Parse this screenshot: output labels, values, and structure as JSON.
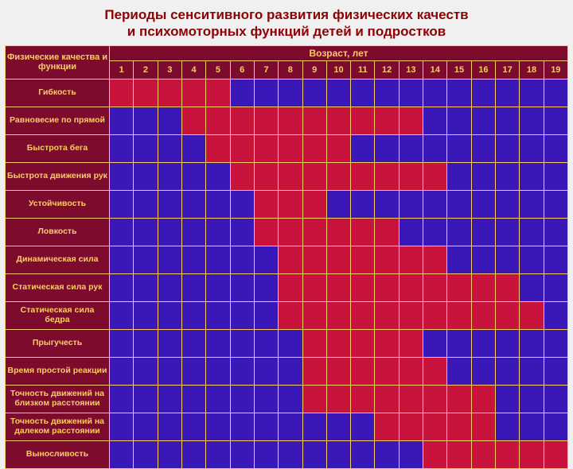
{
  "title_line1": "Периоды сенситивного развития физических качеств",
  "title_line2": "и психомоторных функций детей и подростков",
  "corner_label": "Физические качества и функции",
  "age_label": "Возраст, лет",
  "ages": [
    "1",
    "2",
    "3",
    "4",
    "5",
    "6",
    "7",
    "8",
    "9",
    "10",
    "11",
    "12",
    "13",
    "14",
    "15",
    "16",
    "17",
    "18",
    "19"
  ],
  "colors": {
    "header_bg": "#7d0b2d",
    "header_fg": "#ffcc66",
    "blue": "#3a18b8",
    "red": "#c8143c",
    "border": "#ffcc66"
  },
  "rows": [
    {
      "label": "Гибкость",
      "cells": [
        1,
        1,
        1,
        1,
        1,
        0,
        0,
        0,
        0,
        0,
        0,
        0,
        0,
        0,
        0,
        0,
        0,
        0,
        0
      ]
    },
    {
      "label": "Равновесие по прямой",
      "cells": [
        0,
        0,
        0,
        1,
        1,
        1,
        1,
        1,
        1,
        1,
        1,
        1,
        1,
        0,
        0,
        0,
        0,
        0,
        0
      ]
    },
    {
      "label": "Быстрота бега",
      "cells": [
        0,
        0,
        0,
        0,
        1,
        1,
        1,
        1,
        1,
        1,
        0,
        0,
        0,
        0,
        0,
        0,
        0,
        0,
        0
      ]
    },
    {
      "label": "Быстрота движения рук",
      "cells": [
        0,
        0,
        0,
        0,
        0,
        1,
        1,
        1,
        1,
        1,
        1,
        1,
        1,
        1,
        0,
        0,
        0,
        0,
        0
      ]
    },
    {
      "label": "Устойчивость",
      "cells": [
        0,
        0,
        0,
        0,
        0,
        0,
        1,
        1,
        1,
        0,
        0,
        0,
        0,
        0,
        0,
        0,
        0,
        0,
        0
      ]
    },
    {
      "label": "Ловкость",
      "cells": [
        0,
        0,
        0,
        0,
        0,
        0,
        1,
        1,
        1,
        1,
        1,
        1,
        0,
        0,
        0,
        0,
        0,
        0,
        0
      ]
    },
    {
      "label": "Динамическая сила",
      "cells": [
        0,
        0,
        0,
        0,
        0,
        0,
        0,
        1,
        1,
        1,
        1,
        1,
        1,
        1,
        0,
        0,
        0,
        0,
        0
      ]
    },
    {
      "label": "Статическая сила рук",
      "cells": [
        0,
        0,
        0,
        0,
        0,
        0,
        0,
        1,
        1,
        1,
        1,
        1,
        1,
        1,
        1,
        1,
        1,
        0,
        0
      ]
    },
    {
      "label": "Статическая сила бедра",
      "cells": [
        0,
        0,
        0,
        0,
        0,
        0,
        0,
        1,
        1,
        1,
        1,
        1,
        1,
        1,
        1,
        1,
        1,
        1,
        0
      ]
    },
    {
      "label": "Прыгучесть",
      "cells": [
        0,
        0,
        0,
        0,
        0,
        0,
        0,
        0,
        1,
        1,
        1,
        1,
        1,
        0,
        0,
        0,
        0,
        0,
        0
      ]
    },
    {
      "label": "Время простой реакции",
      "cells": [
        0,
        0,
        0,
        0,
        0,
        0,
        0,
        0,
        1,
        1,
        1,
        1,
        1,
        1,
        0,
        0,
        0,
        0,
        0
      ]
    },
    {
      "label": "Точность движений на близком расстоянии",
      "cells": [
        0,
        0,
        0,
        0,
        0,
        0,
        0,
        0,
        1,
        1,
        1,
        1,
        1,
        1,
        1,
        1,
        0,
        0,
        0
      ]
    },
    {
      "label": "Точность движений на далеком расстоянии",
      "cells": [
        0,
        0,
        0,
        0,
        0,
        0,
        0,
        0,
        0,
        0,
        0,
        1,
        1,
        1,
        1,
        1,
        0,
        0,
        0
      ]
    },
    {
      "label": "Выносливость",
      "cells": [
        0,
        0,
        0,
        0,
        0,
        0,
        0,
        0,
        0,
        0,
        0,
        0,
        0,
        1,
        1,
        1,
        1,
        1,
        1
      ]
    }
  ]
}
